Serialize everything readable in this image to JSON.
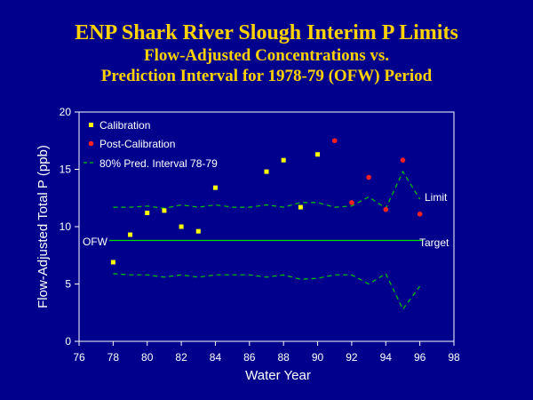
{
  "header": {
    "title": "ENP Shark River Slough Interim P Limits",
    "subtitle_line1": "Flow-Adjusted Concentrations vs.",
    "subtitle_line2": "Prediction Interval for 1978-79 (OFW) Period"
  },
  "colors": {
    "background": "#00008c",
    "title": "#ffd200",
    "calibration": "#ffff00",
    "post_calibration": "#ff2020",
    "interval": "#00c800",
    "target_line": "#00dc00",
    "axes": "#ffffff"
  },
  "chart_data": {
    "type": "scatter",
    "xlabel": "Water Year",
    "ylabel": "Flow-Adjusted Total P (ppb)",
    "xlim": [
      76,
      98
    ],
    "ylim": [
      0,
      20
    ],
    "xticks": [
      76,
      78,
      80,
      82,
      84,
      86,
      88,
      90,
      92,
      94,
      96,
      98
    ],
    "yticks": [
      0,
      5,
      10,
      15,
      20
    ],
    "legend_position": "top-left",
    "series": [
      {
        "name": "Calibration",
        "points": [
          {
            "x": 78,
            "y": 6.9
          },
          {
            "x": 79,
            "y": 9.3
          },
          {
            "x": 80,
            "y": 11.2
          },
          {
            "x": 81,
            "y": 11.4
          },
          {
            "x": 82,
            "y": 10.0
          },
          {
            "x": 83,
            "y": 9.6
          },
          {
            "x": 84,
            "y": 13.4
          },
          {
            "x": 87,
            "y": 14.8
          },
          {
            "x": 88,
            "y": 15.8
          },
          {
            "x": 89,
            "y": 11.7
          },
          {
            "x": 90,
            "y": 16.3
          }
        ]
      },
      {
        "name": "Post-Calibration",
        "points": [
          {
            "x": 91,
            "y": 17.5
          },
          {
            "x": 92,
            "y": 12.1
          },
          {
            "x": 93,
            "y": 14.3
          },
          {
            "x": 94,
            "y": 11.5
          },
          {
            "x": 95,
            "y": 15.8
          },
          {
            "x": 96,
            "y": 11.1
          }
        ]
      },
      {
        "name": "80% Pred. Interval 78-79",
        "upper": [
          {
            "x": 78,
            "y": 11.7
          },
          {
            "x": 79,
            "y": 11.7
          },
          {
            "x": 80,
            "y": 11.8
          },
          {
            "x": 81,
            "y": 11.6
          },
          {
            "x": 82,
            "y": 11.9
          },
          {
            "x": 83,
            "y": 11.7
          },
          {
            "x": 84,
            "y": 11.9
          },
          {
            "x": 85,
            "y": 11.7
          },
          {
            "x": 86,
            "y": 11.7
          },
          {
            "x": 87,
            "y": 11.9
          },
          {
            "x": 88,
            "y": 11.7
          },
          {
            "x": 89,
            "y": 12.1
          },
          {
            "x": 90,
            "y": 12.1
          },
          {
            "x": 91,
            "y": 11.7
          },
          {
            "x": 92,
            "y": 11.8
          },
          {
            "x": 93,
            "y": 12.6
          },
          {
            "x": 94,
            "y": 11.6
          },
          {
            "x": 95,
            "y": 14.8
          },
          {
            "x": 96,
            "y": 12.4
          }
        ],
        "lower": [
          {
            "x": 78,
            "y": 5.9
          },
          {
            "x": 79,
            "y": 5.8
          },
          {
            "x": 80,
            "y": 5.8
          },
          {
            "x": 81,
            "y": 5.6
          },
          {
            "x": 82,
            "y": 5.8
          },
          {
            "x": 83,
            "y": 5.6
          },
          {
            "x": 84,
            "y": 5.8
          },
          {
            "x": 85,
            "y": 5.8
          },
          {
            "x": 86,
            "y": 5.8
          },
          {
            "x": 87,
            "y": 5.6
          },
          {
            "x": 88,
            "y": 5.8
          },
          {
            "x": 89,
            "y": 5.4
          },
          {
            "x": 90,
            "y": 5.5
          },
          {
            "x": 91,
            "y": 5.8
          },
          {
            "x": 92,
            "y": 5.8
          },
          {
            "x": 93,
            "y": 5.0
          },
          {
            "x": 94,
            "y": 5.9
          },
          {
            "x": 95,
            "y": 2.8
          },
          {
            "x": 96,
            "y": 4.8
          }
        ]
      }
    ],
    "target": {
      "y": 8.8,
      "x_start": 78,
      "x_end": 96
    },
    "annotations": {
      "limit": "Limit",
      "target": "Target",
      "ofw": "OFW"
    }
  }
}
